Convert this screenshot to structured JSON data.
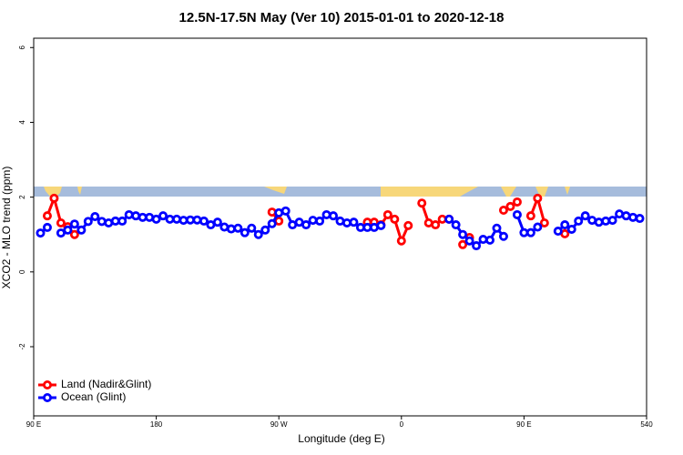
{
  "chart_data": {
    "type": "line",
    "title": "12.5N-17.5N May (Ver 10)   2015-01-01 to 2020-12-18",
    "x_label": "Longitude (deg E)",
    "y_label": "XCO2 - MLO trend (ppm)",
    "x": [
      95,
      100,
      105,
      110,
      115,
      120,
      125,
      130,
      135,
      140,
      145,
      150,
      155,
      160,
      165,
      170,
      175,
      180,
      185,
      190,
      195,
      200,
      205,
      210,
      215,
      220,
      225,
      230,
      235,
      240,
      245,
      250,
      255,
      260,
      265,
      270,
      275,
      280,
      285,
      290,
      295,
      300,
      305,
      310,
      315,
      320,
      325,
      330,
      335,
      340,
      345,
      350,
      355,
      360,
      365,
      370,
      375,
      380,
      385,
      390,
      395,
      400,
      405,
      410,
      415,
      420,
      425,
      430,
      435,
      440,
      445,
      450,
      455,
      460,
      465,
      470,
      475,
      480,
      485,
      490,
      495,
      500,
      505,
      510,
      515,
      520,
      525,
      530,
      535
    ],
    "series": [
      {
        "name": "Land (Nadir&Glint)",
        "color": "#ff0000",
        "values": [
          null,
          1.5,
          1.97,
          1.31,
          1.21,
          1.0,
          null,
          null,
          null,
          null,
          null,
          null,
          null,
          null,
          null,
          null,
          null,
          null,
          null,
          null,
          null,
          null,
          null,
          null,
          null,
          null,
          null,
          null,
          null,
          null,
          null,
          null,
          null,
          null,
          1.6,
          1.36,
          null,
          null,
          null,
          null,
          null,
          null,
          null,
          null,
          null,
          null,
          null,
          null,
          1.33,
          1.33,
          1.26,
          1.53,
          1.41,
          0.83,
          1.24,
          null,
          1.84,
          1.31,
          1.26,
          1.41,
          1.41,
          null,
          0.73,
          0.92,
          null,
          null,
          null,
          null,
          1.65,
          1.75,
          1.87,
          null,
          1.5,
          1.97,
          1.31,
          null,
          null,
          1.02,
          null,
          null,
          null,
          null,
          null,
          null,
          null,
          null,
          null,
          null,
          null
        ]
      },
      {
        "name": "Ocean (Glint)",
        "color": "#0000ff",
        "values": [
          1.04,
          1.19,
          null,
          1.04,
          1.12,
          1.28,
          1.12,
          1.35,
          1.48,
          1.35,
          1.31,
          1.36,
          1.36,
          1.53,
          1.5,
          1.46,
          1.46,
          1.41,
          1.5,
          1.41,
          1.41,
          1.38,
          1.39,
          1.39,
          1.36,
          1.26,
          1.33,
          1.2,
          1.15,
          1.17,
          1.05,
          1.17,
          1.0,
          1.12,
          1.29,
          1.58,
          1.63,
          1.26,
          1.33,
          1.26,
          1.38,
          1.36,
          1.53,
          1.5,
          1.36,
          1.31,
          1.33,
          1.19,
          1.19,
          1.19,
          1.24,
          null,
          null,
          null,
          null,
          null,
          null,
          null,
          null,
          null,
          1.41,
          1.26,
          1.0,
          0.83,
          0.7,
          0.87,
          0.85,
          1.17,
          0.95,
          null,
          1.53,
          1.05,
          1.05,
          1.2,
          null,
          null,
          1.09,
          1.26,
          1.14,
          1.36,
          1.5,
          1.38,
          1.33,
          1.36,
          1.38,
          1.55,
          1.5,
          1.46,
          1.43
        ]
      }
    ],
    "xlim": [
      90,
      540
    ],
    "xticks": [
      {
        "value": 90,
        "label": "90 E"
      },
      180,
      {
        "value": 270,
        "label": "90 W"
      },
      {
        "value": 360,
        "label": "0"
      },
      {
        "value": 450,
        "label": "90 E"
      },
      540
    ],
    "ylim": [
      -3.85,
      6.25
    ],
    "yticks": [
      -2,
      0,
      2,
      4,
      6
    ],
    "grid": false,
    "legend": "bottom-left"
  }
}
